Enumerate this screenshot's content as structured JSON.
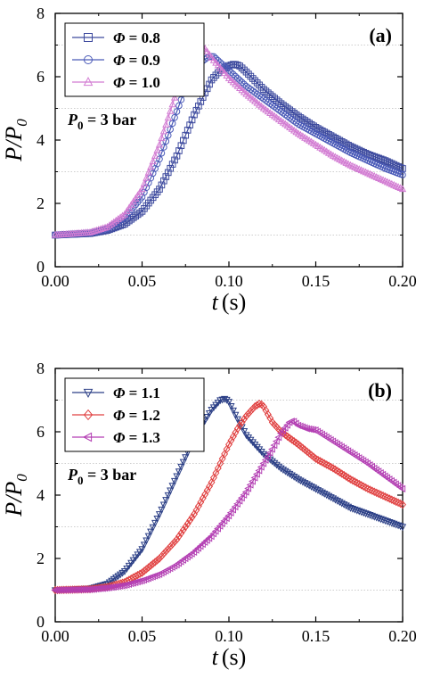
{
  "chart_data": [
    {
      "type": "line",
      "panel_label": "(a)",
      "xlabel": "t",
      "xlabel_unit": "(s)",
      "ylabel": "P/P",
      "ylabel_sub": "0",
      "xlim": [
        0.0,
        0.2
      ],
      "ylim": [
        0,
        8
      ],
      "xticks": [
        "0.00",
        "0.05",
        "0.10",
        "0.15",
        "0.20"
      ],
      "yticks": [
        "0",
        "2",
        "4",
        "6",
        "8"
      ],
      "legend_position": "top-left",
      "grid": "dotted horizontal lines",
      "annotation": {
        "prefix": "P",
        "sub": "0",
        "suffix": " = 3 bar"
      },
      "series": [
        {
          "name": "Φ = 0.8",
          "symbol": "Φ",
          "value": " = 0.8",
          "color": "#3d4a9e",
          "marker": "square",
          "x": [
            0,
            0.02,
            0.03,
            0.04,
            0.05,
            0.06,
            0.07,
            0.08,
            0.09,
            0.095,
            0.1,
            0.103,
            0.106,
            0.11,
            0.12,
            0.13,
            0.14,
            0.15,
            0.16,
            0.17,
            0.18,
            0.19,
            0.2
          ],
          "y": [
            1.0,
            1.05,
            1.15,
            1.35,
            1.75,
            2.45,
            3.5,
            4.8,
            5.9,
            6.2,
            6.35,
            6.4,
            6.35,
            6.15,
            5.6,
            5.15,
            4.75,
            4.4,
            4.1,
            3.8,
            3.55,
            3.35,
            3.1
          ]
        },
        {
          "name": "Φ = 0.9",
          "symbol": "Φ",
          "value": " = 0.9",
          "color": "#4a5ab8",
          "marker": "circle",
          "x": [
            0,
            0.02,
            0.03,
            0.04,
            0.05,
            0.06,
            0.07,
            0.075,
            0.08,
            0.085,
            0.088,
            0.091,
            0.1,
            0.11,
            0.12,
            0.13,
            0.14,
            0.15,
            0.16,
            0.17,
            0.18,
            0.19,
            0.2
          ],
          "y": [
            1.0,
            1.07,
            1.2,
            1.55,
            2.2,
            3.4,
            4.9,
            5.65,
            6.2,
            6.5,
            6.62,
            6.65,
            6.2,
            5.7,
            5.3,
            4.9,
            4.5,
            4.2,
            3.9,
            3.6,
            3.35,
            3.1,
            2.9
          ]
        },
        {
          "name": "Φ = 1.0",
          "symbol": "Φ",
          "value": " = 1.0",
          "color": "#d27bd2",
          "marker": "triangle-up",
          "x": [
            0,
            0.02,
            0.03,
            0.04,
            0.05,
            0.06,
            0.065,
            0.07,
            0.075,
            0.08,
            0.083,
            0.086,
            0.09,
            0.1,
            0.11,
            0.12,
            0.13,
            0.14,
            0.15,
            0.16,
            0.17,
            0.18,
            0.19,
            0.2
          ],
          "y": [
            1.0,
            1.08,
            1.25,
            1.65,
            2.45,
            3.85,
            4.7,
            5.55,
            6.3,
            6.8,
            6.95,
            6.9,
            6.6,
            5.95,
            5.45,
            5.0,
            4.6,
            4.2,
            3.85,
            3.5,
            3.2,
            2.95,
            2.7,
            2.45
          ]
        }
      ]
    },
    {
      "type": "line",
      "panel_label": "(b)",
      "xlabel": "t",
      "xlabel_unit": "(s)",
      "ylabel": "P/P",
      "ylabel_sub": "0",
      "xlim": [
        0.0,
        0.2
      ],
      "ylim": [
        0,
        8
      ],
      "xticks": [
        "0.00",
        "0.05",
        "0.10",
        "0.15",
        "0.20"
      ],
      "yticks": [
        "0",
        "2",
        "4",
        "6",
        "8"
      ],
      "legend_position": "top-left",
      "grid": "dotted horizontal lines",
      "annotation": {
        "prefix": "P",
        "sub": "0",
        "suffix": " = 3 bar"
      },
      "series": [
        {
          "name": "Φ = 1.1",
          "symbol": "Φ",
          "value": " = 1.1",
          "color": "#2b3f86",
          "marker": "triangle-down",
          "x": [
            0,
            0.02,
            0.03,
            0.04,
            0.05,
            0.06,
            0.07,
            0.08,
            0.09,
            0.095,
            0.098,
            0.1,
            0.105,
            0.11,
            0.12,
            0.13,
            0.14,
            0.15,
            0.16,
            0.17,
            0.18,
            0.19,
            0.2
          ],
          "y": [
            1.0,
            1.05,
            1.2,
            1.6,
            2.3,
            3.4,
            4.6,
            5.8,
            6.7,
            7.0,
            7.05,
            6.95,
            6.4,
            5.9,
            5.3,
            4.85,
            4.5,
            4.2,
            3.9,
            3.6,
            3.4,
            3.2,
            3.0
          ]
        },
        {
          "name": "Φ = 1.2",
          "symbol": "Φ",
          "value": " = 1.2",
          "color": "#e04040",
          "marker": "diamond",
          "x": [
            0,
            0.02,
            0.03,
            0.04,
            0.05,
            0.06,
            0.07,
            0.08,
            0.09,
            0.1,
            0.105,
            0.11,
            0.115,
            0.118,
            0.12,
            0.125,
            0.13,
            0.14,
            0.15,
            0.16,
            0.17,
            0.18,
            0.19,
            0.2
          ],
          "y": [
            1.0,
            1.03,
            1.1,
            1.25,
            1.55,
            2.0,
            2.6,
            3.4,
            4.4,
            5.6,
            6.1,
            6.5,
            6.8,
            6.9,
            6.8,
            6.3,
            6.0,
            5.6,
            5.15,
            4.85,
            4.5,
            4.2,
            3.95,
            3.7
          ]
        },
        {
          "name": "Φ = 1.3",
          "symbol": "Φ",
          "value": " = 1.3",
          "color": "#b33fb3",
          "marker": "triangle-left",
          "x": [
            0,
            0.02,
            0.03,
            0.04,
            0.05,
            0.06,
            0.07,
            0.08,
            0.09,
            0.1,
            0.11,
            0.12,
            0.125,
            0.13,
            0.135,
            0.137,
            0.14,
            0.145,
            0.15,
            0.16,
            0.17,
            0.18,
            0.19,
            0.2
          ],
          "y": [
            1.0,
            1.02,
            1.07,
            1.15,
            1.3,
            1.5,
            1.8,
            2.2,
            2.7,
            3.35,
            4.1,
            5.0,
            5.45,
            5.95,
            6.3,
            6.35,
            6.2,
            6.1,
            6.05,
            5.7,
            5.35,
            5.0,
            4.6,
            4.2
          ]
        }
      ]
    }
  ]
}
